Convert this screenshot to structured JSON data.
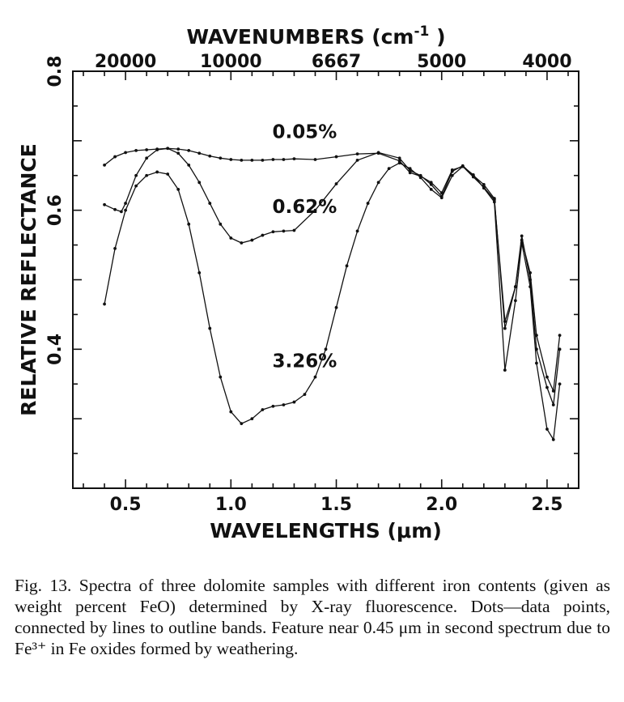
{
  "chart_data": {
    "type": "line",
    "top_axis_label_prefix": "WAVENUMBERS  (cm",
    "top_axis_label_exp": "-1",
    "top_axis_label_suffix": ")",
    "top_ticks": [
      {
        "label": "20000",
        "x": 0.5
      },
      {
        "label": "10000",
        "x": 1.0
      },
      {
        "label": "6667",
        "x": 1.5
      },
      {
        "label": "5000",
        "x": 2.0
      },
      {
        "label": "4000",
        "x": 2.5
      }
    ],
    "xlabel": "WAVELENGTHS  (μm)",
    "ylabel": "RELATIVE  REFLECTANCE",
    "xlim": [
      0.25,
      2.65
    ],
    "ylim": [
      0.2,
      0.8
    ],
    "x_ticks": [
      {
        "label": "0.5",
        "value": 0.5
      },
      {
        "label": "1.0",
        "value": 1.0
      },
      {
        "label": "1.5",
        "value": 1.5
      },
      {
        "label": "2.0",
        "value": 2.0
      },
      {
        "label": "2.5",
        "value": 2.5
      }
    ],
    "y_ticks": [
      {
        "label": "0.4",
        "value": 0.4
      },
      {
        "label": "0.6",
        "value": 0.6
      },
      {
        "label": "0.8",
        "value": 0.8
      }
    ],
    "grid": false,
    "series": [
      {
        "name": "0.05%",
        "x": [
          0.4,
          0.45,
          0.5,
          0.55,
          0.6,
          0.65,
          0.7,
          0.75,
          0.8,
          0.85,
          0.9,
          0.95,
          1.0,
          1.05,
          1.1,
          1.15,
          1.2,
          1.25,
          1.3,
          1.4,
          1.5,
          1.6,
          1.7,
          1.8,
          1.85,
          1.9,
          1.95,
          2.0,
          2.05,
          2.1,
          2.15,
          2.2,
          2.25,
          2.3,
          2.35,
          2.38,
          2.42,
          2.45,
          2.5,
          2.53,
          2.56
        ],
        "y": [
          0.665,
          0.677,
          0.683,
          0.686,
          0.687,
          0.688,
          0.689,
          0.688,
          0.686,
          0.682,
          0.678,
          0.675,
          0.673,
          0.672,
          0.672,
          0.672,
          0.673,
          0.673,
          0.674,
          0.673,
          0.677,
          0.681,
          0.682,
          0.671,
          0.654,
          0.649,
          0.64,
          0.625,
          0.658,
          0.663,
          0.648,
          0.633,
          0.615,
          0.44,
          0.49,
          0.557,
          0.51,
          0.42,
          0.36,
          0.34,
          0.42
        ]
      },
      {
        "name": "0.62%",
        "x": [
          0.4,
          0.45,
          0.48,
          0.5,
          0.55,
          0.6,
          0.65,
          0.7,
          0.75,
          0.8,
          0.85,
          0.9,
          0.95,
          1.0,
          1.05,
          1.1,
          1.15,
          1.2,
          1.25,
          1.3,
          1.4,
          1.5,
          1.6,
          1.7,
          1.8,
          1.85,
          1.9,
          1.95,
          2.0,
          2.05,
          2.1,
          2.15,
          2.2,
          2.25,
          2.3,
          2.35,
          2.38,
          2.42,
          2.45,
          2.5,
          2.53,
          2.56
        ],
        "y": [
          0.608,
          0.601,
          0.598,
          0.61,
          0.65,
          0.675,
          0.687,
          0.689,
          0.682,
          0.665,
          0.64,
          0.61,
          0.58,
          0.56,
          0.553,
          0.557,
          0.564,
          0.569,
          0.57,
          0.571,
          0.6,
          0.638,
          0.672,
          0.683,
          0.675,
          0.657,
          0.65,
          0.637,
          0.62,
          0.656,
          0.664,
          0.65,
          0.637,
          0.617,
          0.43,
          0.49,
          0.563,
          0.5,
          0.4,
          0.345,
          0.32,
          0.4
        ]
      },
      {
        "name": "3.26%",
        "x": [
          0.4,
          0.45,
          0.5,
          0.55,
          0.6,
          0.65,
          0.7,
          0.75,
          0.8,
          0.85,
          0.9,
          0.95,
          1.0,
          1.05,
          1.1,
          1.15,
          1.2,
          1.25,
          1.3,
          1.35,
          1.4,
          1.45,
          1.5,
          1.55,
          1.6,
          1.65,
          1.7,
          1.75,
          1.8,
          1.85,
          1.9,
          1.95,
          2.0,
          2.05,
          2.1,
          2.15,
          2.2,
          2.25,
          2.3,
          2.35,
          2.38,
          2.42,
          2.45,
          2.5,
          2.53,
          2.56
        ],
        "y": [
          0.465,
          0.545,
          0.6,
          0.635,
          0.65,
          0.655,
          0.652,
          0.63,
          0.58,
          0.51,
          0.43,
          0.36,
          0.31,
          0.293,
          0.3,
          0.313,
          0.318,
          0.32,
          0.324,
          0.335,
          0.36,
          0.4,
          0.46,
          0.52,
          0.57,
          0.61,
          0.64,
          0.66,
          0.668,
          0.66,
          0.647,
          0.63,
          0.618,
          0.65,
          0.663,
          0.651,
          0.632,
          0.612,
          0.37,
          0.47,
          0.553,
          0.49,
          0.38,
          0.285,
          0.27,
          0.35
        ]
      }
    ],
    "series_label_positions": [
      {
        "x": 1.35,
        "y": 0.704
      },
      {
        "x": 1.35,
        "y": 0.596
      },
      {
        "x": 1.35,
        "y": 0.374
      }
    ]
  },
  "caption": "Fig. 13.   Spectra of three dolomite samples with different iron contents (given as weight percent FeO) determined by X-ray fluorescence. Dots—data points, connected by lines to outline bands. Feature near 0.45 μm in second spectrum due to Fe³⁺ in Fe oxides formed by weathering."
}
